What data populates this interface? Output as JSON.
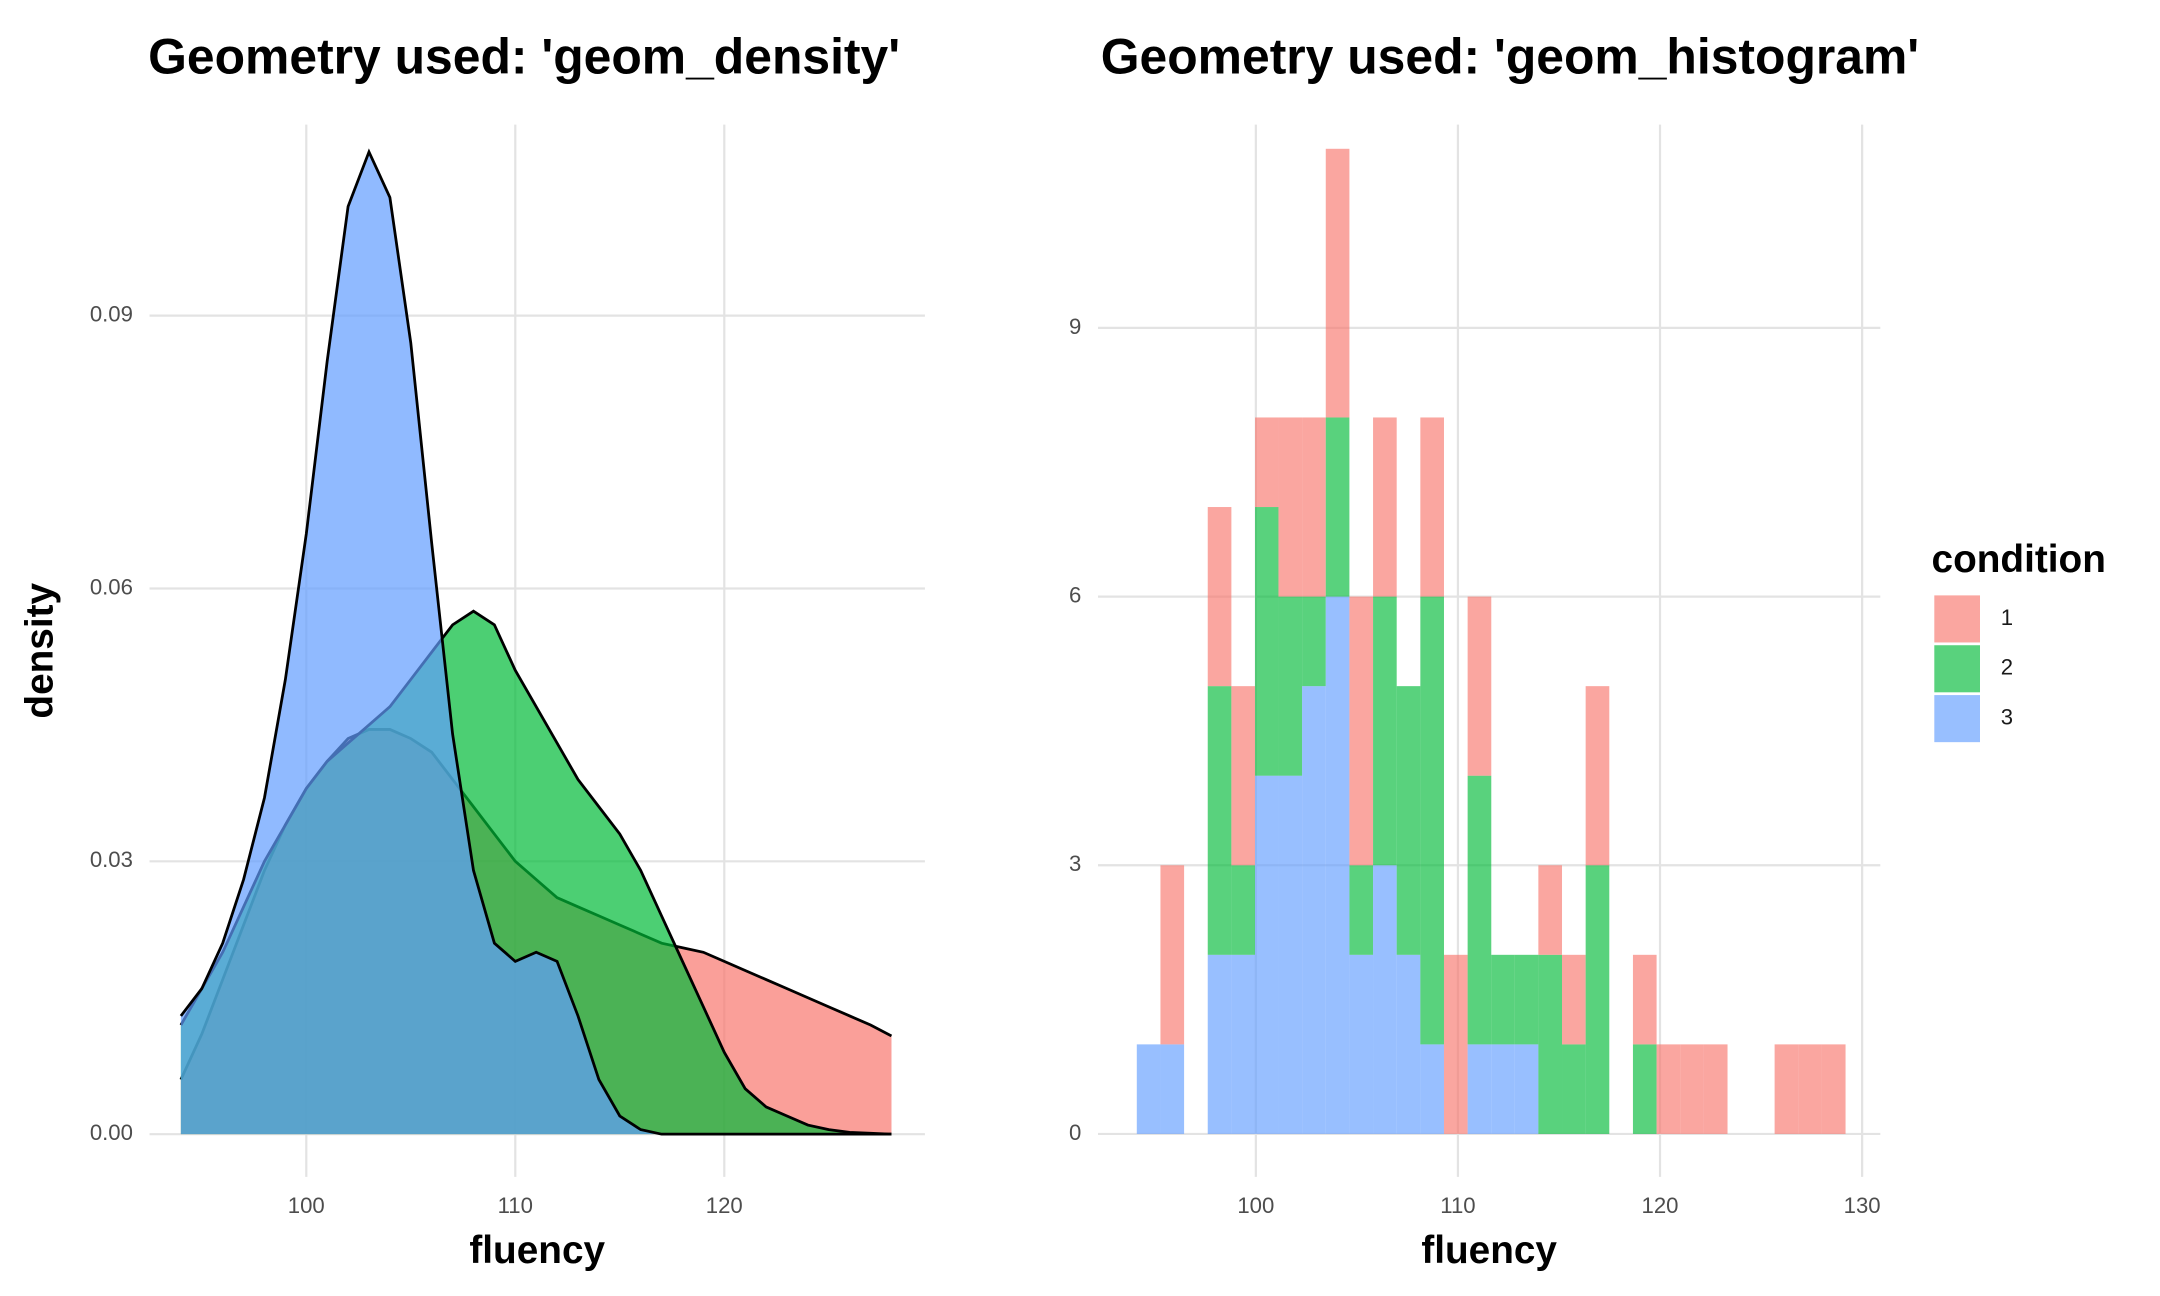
{
  "chart_data": [
    {
      "type": "density",
      "title": "Geometry used: 'geom_density'",
      "x_label": "fluency",
      "y_label": "density",
      "x": [
        94,
        95,
        96,
        97,
        98,
        99,
        100,
        101,
        102,
        103,
        104,
        105,
        106,
        107,
        108,
        109,
        110,
        111,
        112,
        113,
        114,
        115,
        116,
        117,
        118,
        119,
        120,
        121,
        122,
        123,
        124,
        125,
        126,
        127,
        128
      ],
      "series": [
        {
          "name": "1",
          "color": "#F8766D",
          "values": [
            0.006,
            0.011,
            0.017,
            0.023,
            0.029,
            0.034,
            0.038,
            0.041,
            0.0435,
            0.0445,
            0.0445,
            0.0435,
            0.042,
            0.039,
            0.036,
            0.033,
            0.03,
            0.028,
            0.026,
            0.025,
            0.024,
            0.023,
            0.022,
            0.021,
            0.0205,
            0.02,
            0.019,
            0.018,
            0.017,
            0.016,
            0.015,
            0.014,
            0.013,
            0.012,
            0.0108
          ]
        },
        {
          "name": "2",
          "color": "#00BA38",
          "values": [
            0.012,
            0.016,
            0.02,
            0.025,
            0.03,
            0.034,
            0.038,
            0.041,
            0.043,
            0.045,
            0.047,
            0.05,
            0.053,
            0.056,
            0.0575,
            0.056,
            0.051,
            0.047,
            0.043,
            0.039,
            0.036,
            0.033,
            0.029,
            0.024,
            0.019,
            0.014,
            0.009,
            0.005,
            0.003,
            0.002,
            0.001,
            0.0005,
            0.0002,
            0.0001,
            0
          ]
        },
        {
          "name": "3",
          "color": "#619CFF",
          "values": [
            0.013,
            0.016,
            0.021,
            0.028,
            0.037,
            0.05,
            0.066,
            0.085,
            0.102,
            0.108,
            0.103,
            0.087,
            0.065,
            0.044,
            0.029,
            0.021,
            0.019,
            0.02,
            0.019,
            0.013,
            0.006,
            0.002,
            0.0005,
            0,
            0,
            0,
            0,
            0,
            0,
            0,
            0,
            0,
            0,
            0,
            0
          ]
        }
      ],
      "xlim": [
        92.5,
        129.6
      ],
      "xticks": [
        100,
        110,
        120
      ],
      "ylim": [
        -0.0047,
        0.111
      ],
      "yticks": [
        {
          "value": 0,
          "label": "0.00"
        },
        0.03,
        0.06,
        0.09
      ],
      "grid": true
    },
    {
      "type": "histogram",
      "title": "Geometry used: 'geom_histogram'",
      "x_label": "fluency",
      "legend_title": "condition",
      "stacked": true,
      "bins": [
        94.11,
        95.28,
        96.45,
        97.62,
        98.79,
        99.96,
        101.12,
        102.29,
        103.46,
        104.63,
        105.8,
        106.97,
        108.14,
        109.31,
        110.48,
        111.65,
        112.81,
        113.98,
        115.15,
        116.32,
        117.49,
        118.66,
        119.83,
        121.0,
        122.17,
        123.34,
        124.51,
        125.67,
        126.84,
        128.01,
        129.18
      ],
      "series": [
        {
          "name": "1",
          "color": "#F8766D",
          "values": [
            0,
            2,
            0,
            2,
            2,
            1,
            2,
            2,
            3,
            3,
            2,
            0,
            2,
            2,
            2,
            0,
            0,
            1,
            1,
            2,
            0,
            1,
            1,
            1,
            1,
            0,
            0,
            1,
            1,
            1
          ]
        },
        {
          "name": "2",
          "color": "#00BA38",
          "values": [
            0,
            0,
            0,
            3,
            1,
            3,
            2,
            1,
            2,
            1,
            3,
            3,
            5,
            0,
            3,
            1,
            1,
            2,
            1,
            3,
            0,
            1,
            0,
            0,
            0,
            0,
            0,
            0,
            0,
            0
          ]
        },
        {
          "name": "3",
          "color": "#619CFF",
          "values": [
            1,
            1,
            0,
            2,
            2,
            4,
            4,
            5,
            6,
            2,
            3,
            2,
            1,
            0,
            1,
            1,
            1,
            0,
            0,
            0,
            0,
            0,
            0,
            0,
            0,
            0,
            0,
            0,
            0,
            0
          ]
        }
      ],
      "xlim": [
        92.19,
        130.9
      ],
      "xticks": [
        100,
        110,
        120,
        130
      ],
      "ylim": [
        -0.48,
        11.27
      ],
      "yticks": [
        0,
        3,
        6,
        9
      ],
      "grid": true,
      "legend": "right"
    }
  ]
}
